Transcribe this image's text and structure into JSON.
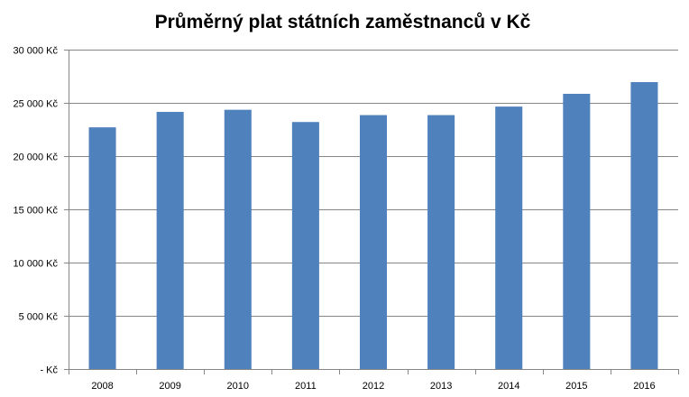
{
  "chart_data": {
    "type": "bar",
    "title": "Průměrný plat státních zaměstnanců v Kč",
    "xlabel": "",
    "ylabel": "",
    "categories": [
      "2008",
      "2009",
      "2010",
      "2011",
      "2012",
      "2013",
      "2014",
      "2015",
      "2016"
    ],
    "values": [
      22700,
      24150,
      24350,
      23200,
      23850,
      23850,
      24650,
      25850,
      26950
    ],
    "ylim": [
      0,
      30000
    ],
    "y_ticks": [
      0,
      5000,
      10000,
      15000,
      20000,
      25000,
      30000
    ],
    "y_tick_labels": [
      "-  Kč",
      "5 000 Kč",
      "10 000 Kč",
      "15 000 Kč",
      "20 000 Kč",
      "25 000 Kč",
      "30 000 Kč"
    ],
    "grid": true,
    "legend": "none",
    "colors": {
      "bar": "#4f81bd",
      "grid": "#868686",
      "axis": "#868686"
    }
  }
}
